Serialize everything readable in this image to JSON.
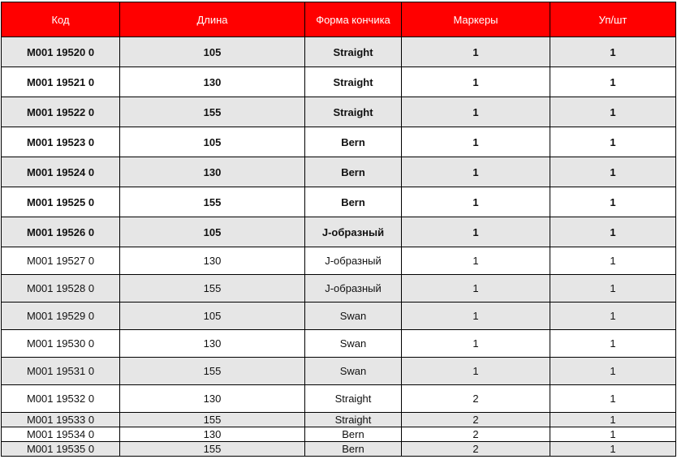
{
  "colors": {
    "header_bg": "#ff0000",
    "shade": "#e6e6e6"
  },
  "headers": [
    "Код",
    "Длина",
    "Форма кончика",
    "Маркеры",
    "Уп/шт"
  ],
  "rows": [
    [
      "M001 19520 0",
      "105",
      "Straight",
      "1",
      "1"
    ],
    [
      "M001 19521 0",
      "130",
      "Straight",
      "1",
      "1"
    ],
    [
      "M001 19522 0",
      "155",
      "Straight",
      "1",
      "1"
    ],
    [
      "M001 19523 0",
      "105",
      "Bern",
      "1",
      "1"
    ],
    [
      "M001 19524 0",
      "130",
      "Bern",
      "1",
      "1"
    ],
    [
      "M001 19525 0",
      "155",
      "Bern",
      "1",
      "1"
    ],
    [
      "M001 19526 0",
      "105",
      "J-образный",
      "1",
      "1"
    ],
    [
      "M001 19527 0",
      "130",
      "J-образный",
      "1",
      "1"
    ],
    [
      "M001 19528 0",
      "155",
      "J-образный",
      "1",
      "1"
    ],
    [
      "M001 19529 0",
      "105",
      "Swan",
      "1",
      "1"
    ],
    [
      "M001 19530 0",
      "130",
      "Swan",
      "1",
      "1"
    ],
    [
      "M001 19531 0",
      "155",
      "Swan",
      "1",
      "1"
    ],
    [
      "M001 19532 0",
      "130",
      "Straight",
      "2",
      "1"
    ],
    [
      "M001 19533 0",
      "155",
      "Straight",
      "2",
      "1"
    ],
    [
      "M001 19534 0",
      "130",
      "Bern",
      "2",
      "1"
    ],
    [
      "M001 19535 0",
      "155",
      "Bern",
      "2",
      "1"
    ]
  ]
}
